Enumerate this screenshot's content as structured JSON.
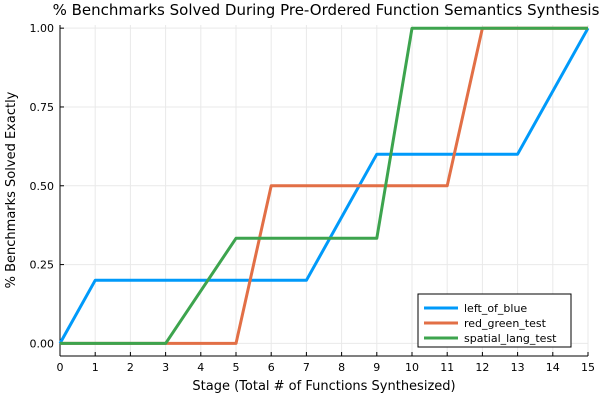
{
  "chart_data": {
    "type": "line",
    "title": "% Benchmarks Solved During Pre-Ordered Function Semantics Synthesis",
    "xlabel": "Stage (Total # of Functions Synthesized)",
    "ylabel": "% Benchmarks Solved Exactly",
    "xlim": [
      0,
      15
    ],
    "ylim": [
      0,
      1
    ],
    "xticks": [
      0,
      1,
      2,
      3,
      4,
      5,
      6,
      7,
      8,
      9,
      10,
      11,
      12,
      13,
      14,
      15
    ],
    "xtick_labels": [
      "0",
      "1",
      "2",
      "3",
      "4",
      "5",
      "6",
      "7",
      "8",
      "9",
      "10",
      "11",
      "12",
      "13",
      "14",
      "15"
    ],
    "yticks": [
      0,
      0.25,
      0.5,
      0.75,
      1.0
    ],
    "ytick_labels": [
      "0.00",
      "0.25",
      "0.50",
      "0.75",
      "1.00"
    ],
    "grid": true,
    "legend_position": "bottom-right",
    "series": [
      {
        "name": "left_of_blue",
        "color": "#009AFA",
        "x": [
          0,
          1,
          7,
          9,
          13,
          15
        ],
        "y": [
          0,
          0.2,
          0.2,
          0.6,
          0.6,
          1.0
        ]
      },
      {
        "name": "red_green_test",
        "color": "#E26F46",
        "x": [
          0,
          5,
          6,
          11,
          12,
          15
        ],
        "y": [
          0,
          0,
          0.5,
          0.5,
          1.0,
          1.0
        ]
      },
      {
        "name": "spatial_lang_test",
        "color": "#3DA44E",
        "x": [
          0,
          3,
          5,
          9,
          10,
          15
        ],
        "y": [
          0,
          0,
          0.3333,
          0.3333,
          1.0,
          1.0
        ]
      }
    ]
  }
}
